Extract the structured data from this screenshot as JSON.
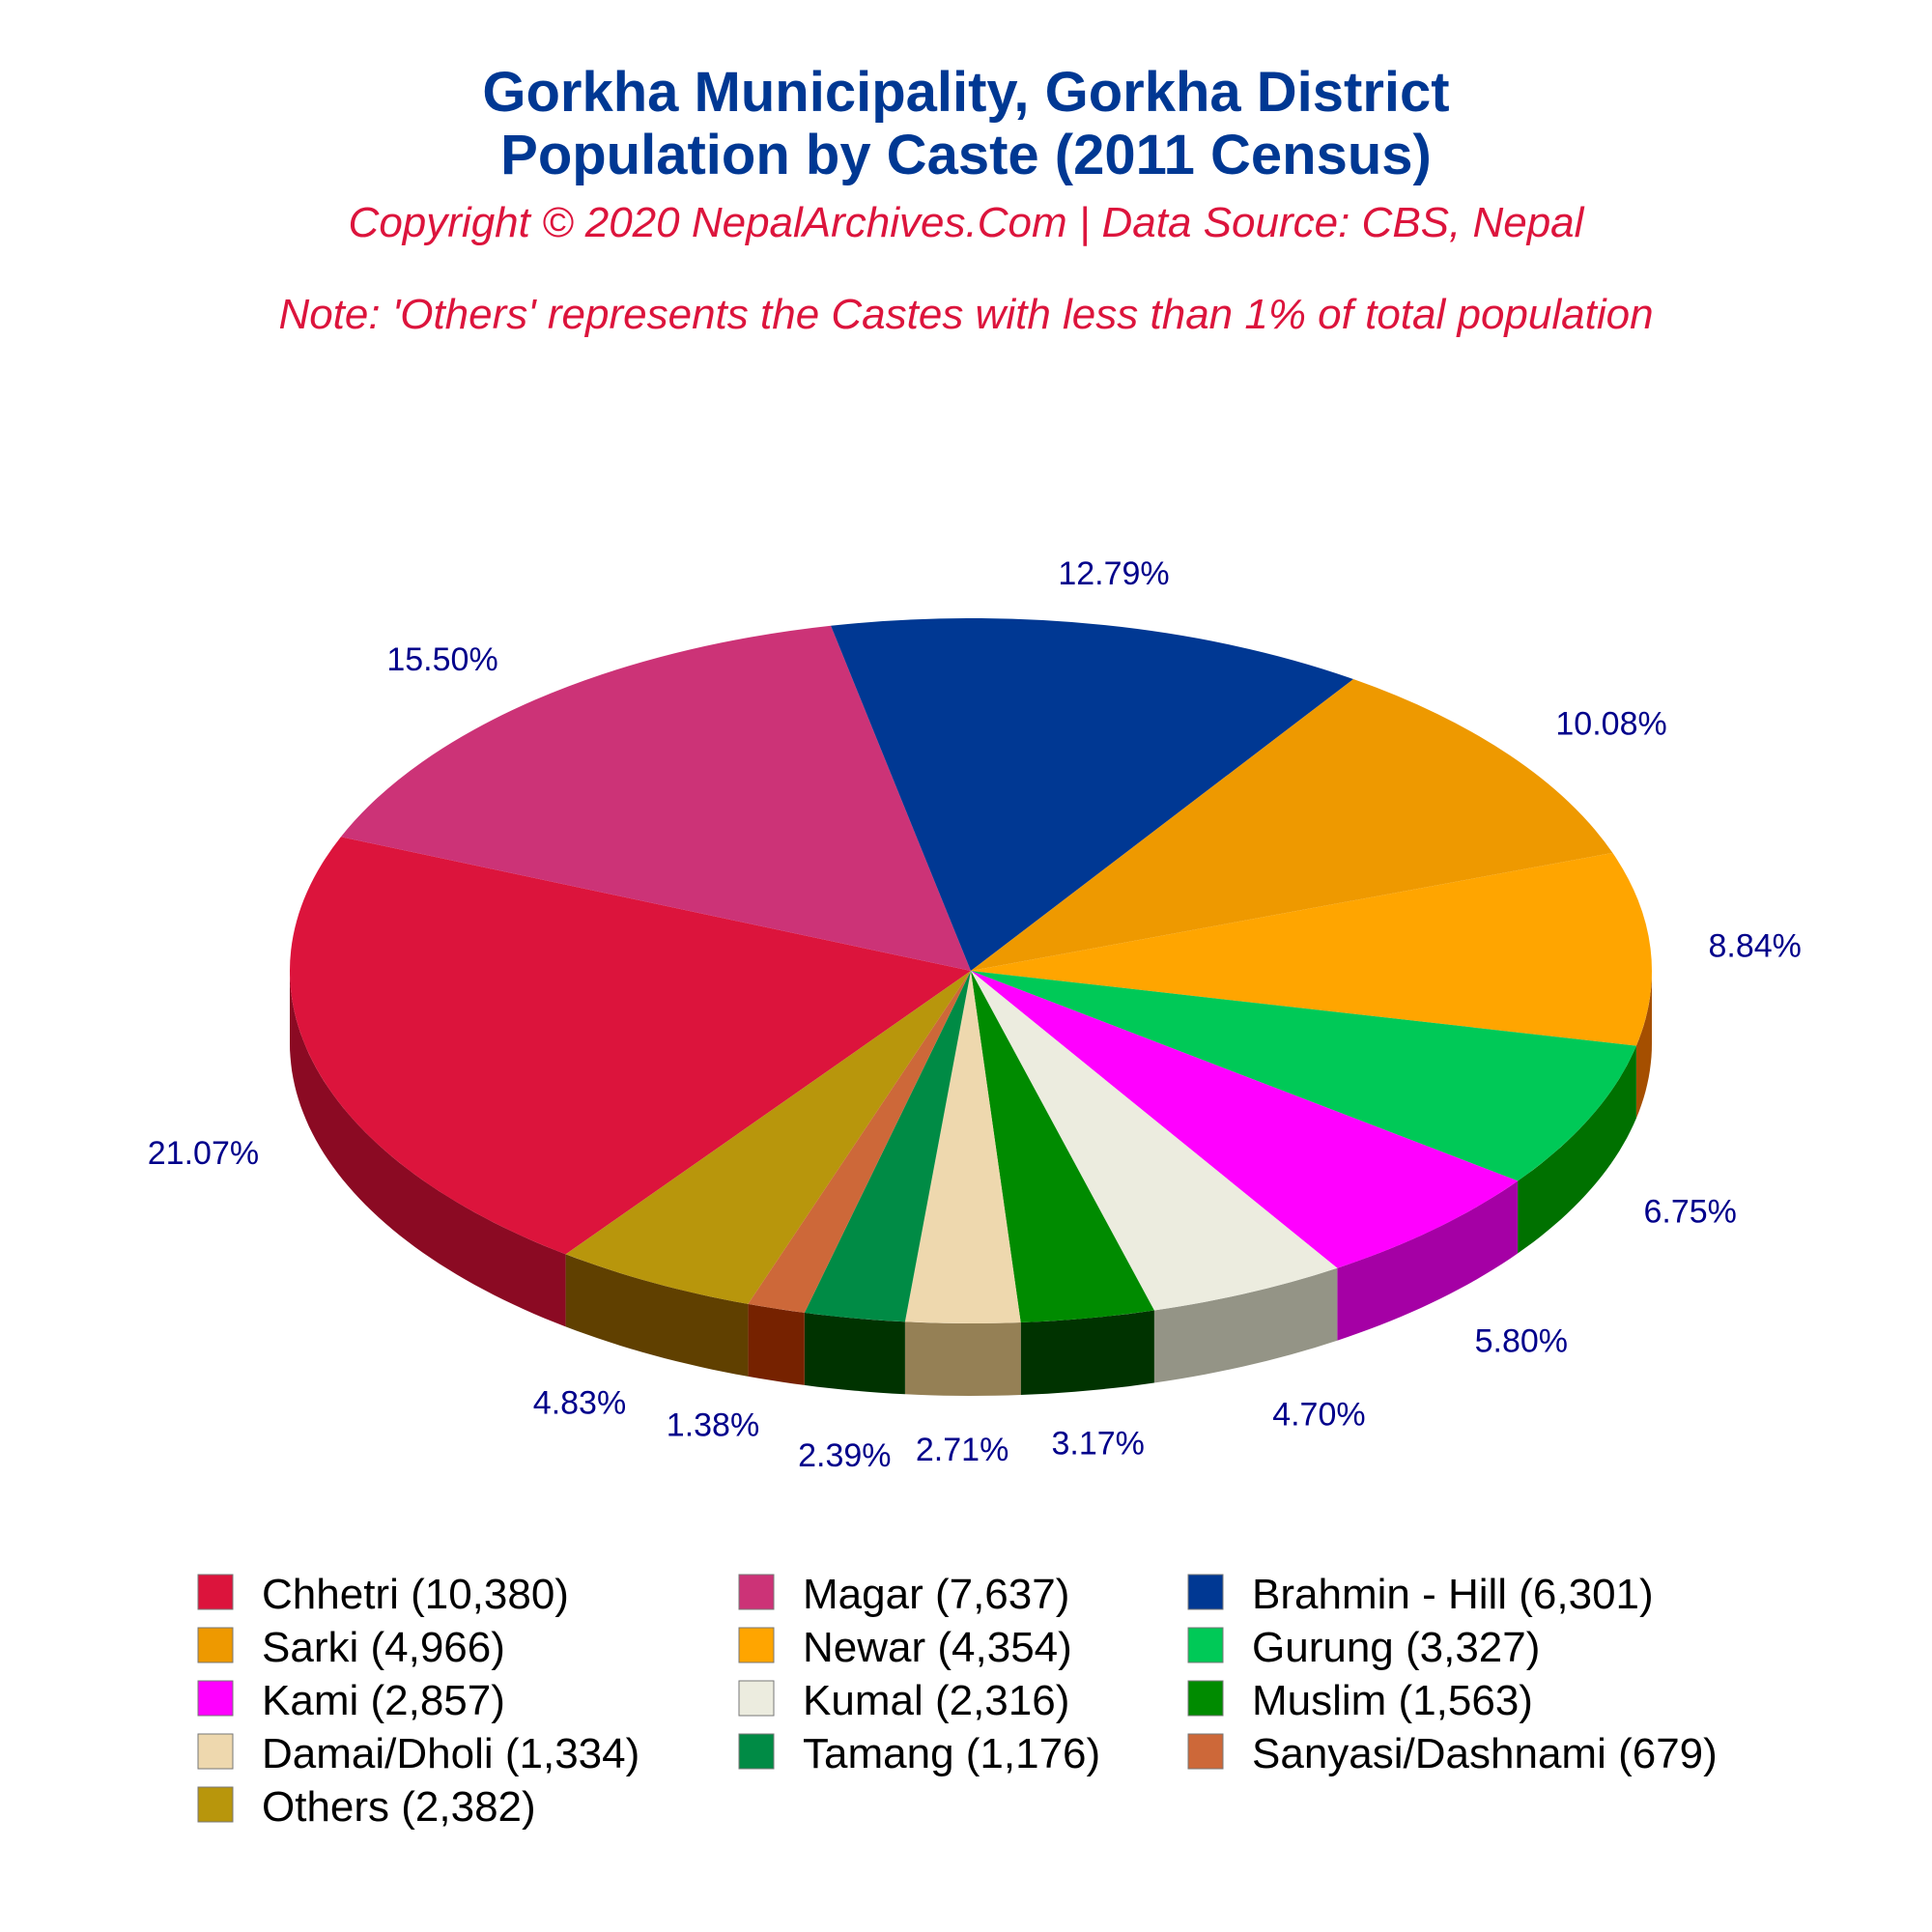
{
  "header": {
    "title_line1": "Gorkha Municipality, Gorkha District",
    "title_line2": "Population by Caste (2011 Census)",
    "copyright": "Copyright © 2020 NepalArchives.Com | Data Source: CBS, Nepal",
    "note": "Note: 'Others' represents the Castes with less than 1% of total population"
  },
  "colors": {
    "title": "#003893",
    "subtitle": "#dc143c",
    "label": "#00008b"
  },
  "chart_data": {
    "type": "pie",
    "style": "3d",
    "title": "Gorkha Municipality, Gorkha District Population by Caste (2011 Census)",
    "legend_position": "bottom",
    "slices": [
      {
        "name": "Chhetri",
        "value": 10380,
        "percent": "21.07%",
        "legend": "Chhetri (10,380)",
        "color": "#dc143c",
        "side": "#8b0a23"
      },
      {
        "name": "Magar",
        "value": 7637,
        "percent": "15.50%",
        "legend": "Magar (7,637)",
        "color": "#cc3377",
        "side": "#7a1f47"
      },
      {
        "name": "Brahmin - Hill",
        "value": 6301,
        "percent": "12.79%",
        "legend": "Brahmin - Hill (6,301)",
        "color": "#003893",
        "side": "#000040"
      },
      {
        "name": "Sarki",
        "value": 4966,
        "percent": "10.08%",
        "legend": "Sarki (4,966)",
        "color": "#ee9900",
        "side": "#934100"
      },
      {
        "name": "Newar",
        "value": 4354,
        "percent": "8.84%",
        "legend": "Newar (4,354)",
        "color": "#ffa500",
        "side": "#a54f00"
      },
      {
        "name": "Gurung",
        "value": 3327,
        "percent": "6.75%",
        "legend": "Gurung (3,327)",
        "color": "#00c957",
        "side": "#007100"
      },
      {
        "name": "Kami",
        "value": 2857,
        "percent": "5.80%",
        "legend": "Kami (2,857)",
        "color": "#ff00ff",
        "side": "#a500a5"
      },
      {
        "name": "Kumal",
        "value": 2316,
        "percent": "4.70%",
        "legend": "Kumal (2,316)",
        "color": "#ececdf",
        "side": "#949486"
      },
      {
        "name": "Muslim",
        "value": 1563,
        "percent": "3.17%",
        "legend": "Muslim (1,563)",
        "color": "#008b00",
        "side": "#003300"
      },
      {
        "name": "Damai/Dholi",
        "value": 1334,
        "percent": "2.71%",
        "legend": "Damai/Dholi (1,334)",
        "color": "#eed8ae",
        "side": "#958055"
      },
      {
        "name": "Tamang",
        "value": 1176,
        "percent": "2.39%",
        "legend": "Tamang (1,176)",
        "color": "#008b45",
        "side": "#003300"
      },
      {
        "name": "Sanyasi/Dashnami",
        "value": 679,
        "percent": "1.38%",
        "legend": "Sanyasi/Dashnami (679)",
        "color": "#cd6839",
        "side": "#762200"
      },
      {
        "name": "Others",
        "value": 2382,
        "percent": "4.83%",
        "legend": "Others (2,382)",
        "color": "#b8960c",
        "side": "#604000"
      }
    ]
  }
}
